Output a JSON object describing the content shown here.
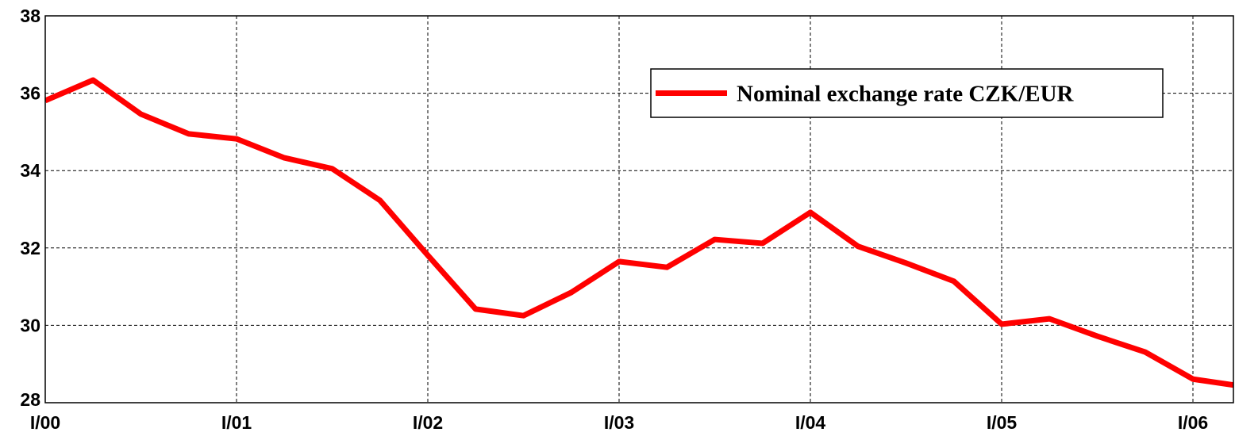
{
  "chart_data": {
    "type": "line",
    "categories": [
      "I/00",
      null,
      null,
      null,
      "I/01",
      null,
      null,
      null,
      "I/02",
      null,
      null,
      null,
      "I/03",
      null,
      null,
      null,
      "I/04",
      null,
      null,
      null,
      "I/05",
      null,
      null,
      null,
      "I/06",
      null
    ],
    "series": [
      {
        "name": "Nominal exchange rate CZK/EUR",
        "color": "#ff0000",
        "values": [
          35.81,
          36.34,
          35.46,
          34.95,
          34.82,
          34.33,
          34.05,
          33.23,
          31.81,
          30.42,
          30.25,
          30.85,
          31.65,
          31.5,
          32.22,
          32.12,
          32.92,
          32.04,
          31.61,
          31.14,
          30.03,
          30.17,
          29.72,
          29.31,
          28.61,
          28.43
        ]
      }
    ],
    "ylim": [
      28,
      38
    ],
    "yticks": [
      28,
      30,
      32,
      34,
      36,
      38
    ],
    "grid": true,
    "legend": "upper right"
  }
}
